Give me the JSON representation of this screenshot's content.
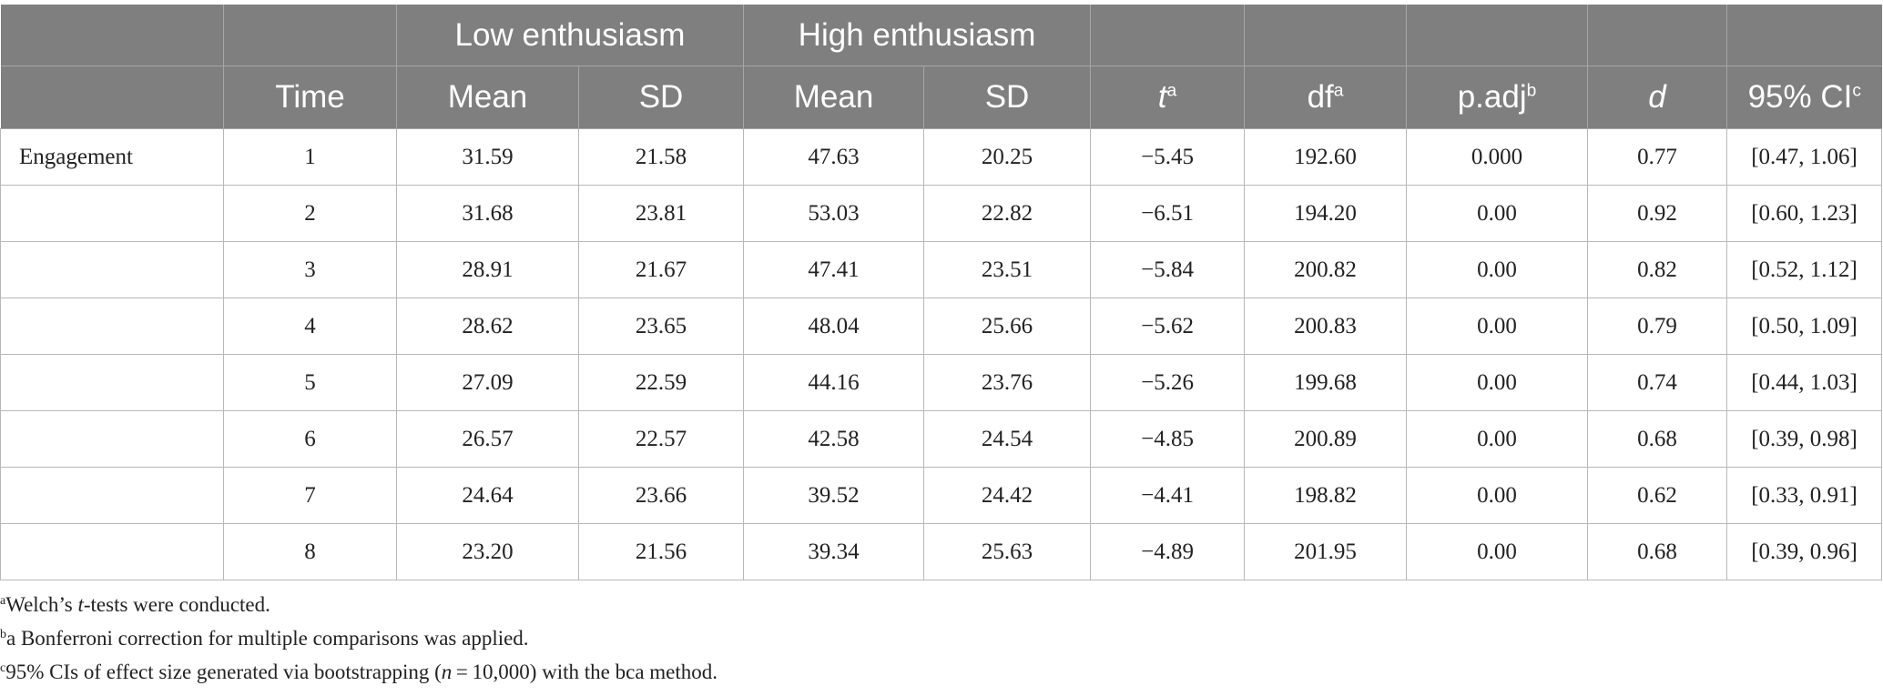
{
  "table": {
    "group_headers": {
      "low": "Low enthusiasm",
      "high": "High enthusiasm"
    },
    "columns": {
      "time": "Time",
      "low_mean": "Mean",
      "low_sd": "SD",
      "high_mean": "Mean",
      "high_sd": "SD",
      "t": "t",
      "t_sup": "a",
      "df": "df",
      "df_sup": "a",
      "padj": "p.adj",
      "padj_sup": "b",
      "d": "d",
      "ci": "95% CI",
      "ci_sup": "c"
    },
    "rows": [
      {
        "label": "Engagement",
        "time": "1",
        "low_mean": "31.59",
        "low_sd": "21.58",
        "high_mean": "47.63",
        "high_sd": "20.25",
        "t": "−5.45",
        "df": "192.60",
        "padj": "0.000",
        "d": "0.77",
        "ci": "[0.47, 1.06]"
      },
      {
        "label": "",
        "time": "2",
        "low_mean": "31.68",
        "low_sd": "23.81",
        "high_mean": "53.03",
        "high_sd": "22.82",
        "t": "−6.51",
        "df": "194.20",
        "padj": "0.00",
        "d": "0.92",
        "ci": "[0.60, 1.23]"
      },
      {
        "label": "",
        "time": "3",
        "low_mean": "28.91",
        "low_sd": "21.67",
        "high_mean": "47.41",
        "high_sd": "23.51",
        "t": "−5.84",
        "df": "200.82",
        "padj": "0.00",
        "d": "0.82",
        "ci": "[0.52, 1.12]"
      },
      {
        "label": "",
        "time": "4",
        "low_mean": "28.62",
        "low_sd": "23.65",
        "high_mean": "48.04",
        "high_sd": "25.66",
        "t": "−5.62",
        "df": "200.83",
        "padj": "0.00",
        "d": "0.79",
        "ci": "[0.50, 1.09]"
      },
      {
        "label": "",
        "time": "5",
        "low_mean": "27.09",
        "low_sd": "22.59",
        "high_mean": "44.16",
        "high_sd": "23.76",
        "t": "−5.26",
        "df": "199.68",
        "padj": "0.00",
        "d": "0.74",
        "ci": "[0.44, 1.03]"
      },
      {
        "label": "",
        "time": "6",
        "low_mean": "26.57",
        "low_sd": "22.57",
        "high_mean": "42.58",
        "high_sd": "24.54",
        "t": "−4.85",
        "df": "200.89",
        "padj": "0.00",
        "d": "0.68",
        "ci": "[0.39, 0.98]"
      },
      {
        "label": "",
        "time": "7",
        "low_mean": "24.64",
        "low_sd": "23.66",
        "high_mean": "39.52",
        "high_sd": "24.42",
        "t": "−4.41",
        "df": "198.82",
        "padj": "0.00",
        "d": "0.62",
        "ci": "[0.33, 0.91]"
      },
      {
        "label": "",
        "time": "8",
        "low_mean": "23.20",
        "low_sd": "21.56",
        "high_mean": "39.34",
        "high_sd": "25.63",
        "t": "−4.89",
        "df": "201.95",
        "padj": "0.00",
        "d": "0.68",
        "ci": "[0.39, 0.96]"
      }
    ]
  },
  "notes": {
    "a": {
      "mark": "a",
      "before": "Welch’s ",
      "italic": "t",
      "after": "-tests were conducted."
    },
    "b": {
      "mark": "b",
      "text": "a Bonferroni correction for multiple comparisons was applied."
    },
    "c": {
      "mark": "c",
      "before": "95% CIs of effect size generated via bootstrapping (",
      "italic": "n",
      "after": " = 10,000) with the bca method."
    }
  },
  "colors": {
    "header_bg": "#7f7f7f",
    "header_text": "#ffffff",
    "grid": "#b8b8b8"
  }
}
